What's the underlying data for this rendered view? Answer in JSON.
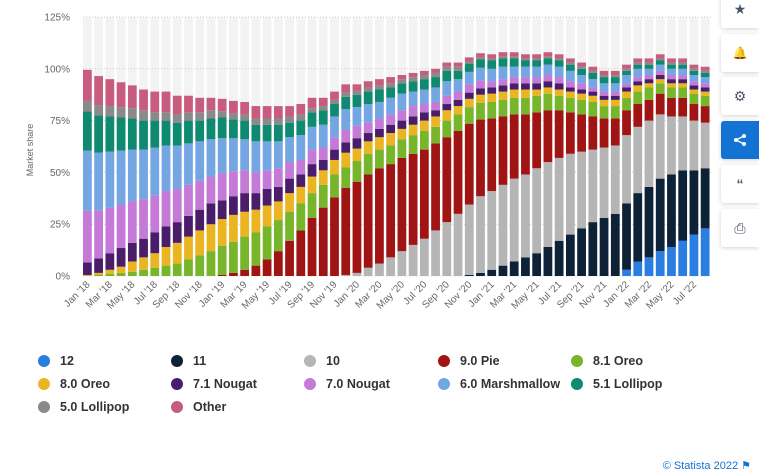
{
  "chart_data": {
    "type": "bar",
    "stacked": true,
    "ylabel": "Market share",
    "ylim": [
      0,
      125
    ],
    "yticks": [
      "0%",
      "25%",
      "50%",
      "75%",
      "100%",
      "125%"
    ],
    "grid": true,
    "legend_position": "bottom",
    "categories": [
      "Jan '18",
      "Feb '18",
      "Mar '18",
      "Apr '18",
      "May '18",
      "Jun '18",
      "Jul '18",
      "Aug '18",
      "Sep '18",
      "Oct '18",
      "Nov '18",
      "Dec '18",
      "Jan '19",
      "Feb '19",
      "Mar '19",
      "Apr '19",
      "May '19",
      "Jun '19",
      "Jul '19",
      "Aug '19",
      "Sep '19",
      "Oct '19",
      "Nov '19",
      "Dec '19",
      "Jan '20",
      "Feb '20",
      "Mar '20",
      "Apr '20",
      "May '20",
      "Jun '20",
      "Jul '20",
      "Aug '20",
      "Sep '20",
      "Oct '20",
      "Nov '20",
      "Dec '20",
      "Jan '21",
      "Feb '21",
      "Mar '21",
      "Apr '21",
      "May '21",
      "Jun '21",
      "Jul '21",
      "Aug '21",
      "Sep '21",
      "Oct '21",
      "Nov '21",
      "Dec '21",
      "Jan '22",
      "Feb '22",
      "Mar '22",
      "Apr '22",
      "May '22",
      "Jun '22",
      "Jul '22",
      "Aug '22"
    ],
    "xtick_labels": [
      "Jan '18",
      "Mar '18",
      "May '18",
      "Jul '18",
      "Sep '18",
      "Nov '18",
      "Jan '19",
      "Mar '19",
      "May '19",
      "Jul '19",
      "Sep '19",
      "Nov '19",
      "Jan '20",
      "Mar '20",
      "May '20",
      "Jul '20",
      "Sep '20",
      "Nov '20",
      "Jan '21",
      "Mar '21",
      "May '21",
      "Jul '21",
      "Sep '21",
      "Nov '21",
      "Jan '22",
      "Mar '22",
      "May '22",
      "Jul '22"
    ],
    "series": [
      {
        "name": "12",
        "color": "#2a7de1",
        "values": [
          0,
          0,
          0,
          0,
          0,
          0,
          0,
          0,
          0,
          0,
          0,
          0,
          0,
          0,
          0,
          0,
          0,
          0,
          0,
          0,
          0,
          0,
          0,
          0,
          0,
          0,
          0,
          0,
          0,
          0,
          0,
          0,
          0,
          0,
          0,
          0,
          0,
          0,
          0,
          0,
          0,
          0,
          0,
          0,
          0,
          0,
          0,
          0,
          3,
          7,
          9,
          12,
          14,
          17,
          20,
          23
        ]
      },
      {
        "name": "11",
        "color": "#0d2137",
        "values": [
          0,
          0,
          0,
          0,
          0,
          0,
          0,
          0,
          0,
          0,
          0,
          0,
          0,
          0,
          0,
          0,
          0,
          0,
          0,
          0,
          0,
          0,
          0,
          0,
          0,
          0,
          0,
          0,
          0,
          0,
          0,
          0,
          0,
          0,
          0.5,
          1.5,
          3,
          5,
          7,
          9,
          11,
          14,
          17,
          20,
          23,
          26,
          28,
          30,
          32,
          33,
          34,
          35,
          35,
          34,
          31,
          29
        ]
      },
      {
        "name": "10",
        "color": "#b5b5b5",
        "values": [
          0,
          0,
          0,
          0,
          0,
          0,
          0,
          0,
          0,
          0,
          0,
          0,
          0,
          0,
          0,
          0,
          0,
          0,
          0,
          0,
          0,
          0,
          0,
          0.5,
          1.5,
          4,
          6,
          9,
          12,
          15,
          18,
          22,
          26,
          30,
          34,
          37,
          38,
          39,
          40,
          40,
          41,
          41,
          40,
          39,
          37,
          35,
          34,
          33,
          33,
          32,
          32,
          31,
          28,
          26,
          24,
          22
        ]
      },
      {
        "name": "9.0 Pie",
        "color": "#a01414",
        "values": [
          0,
          0,
          0,
          0,
          0,
          0,
          0,
          0,
          0,
          0,
          0,
          0,
          0.5,
          1.5,
          3,
          5,
          8,
          12,
          17,
          22,
          28,
          33,
          38,
          42,
          44,
          45,
          46,
          45,
          45,
          44,
          43,
          42,
          41,
          40,
          39,
          37,
          35,
          33,
          31,
          29,
          27,
          25,
          23,
          20,
          18,
          16,
          14,
          13,
          12,
          11,
          10,
          10,
          9,
          9,
          8,
          8
        ]
      },
      {
        "name": "8.1 Oreo",
        "color": "#77b52a",
        "values": [
          0,
          0.5,
          1,
          1.5,
          2,
          3,
          4,
          5,
          6,
          8,
          10,
          12,
          14,
          15,
          16,
          16,
          16,
          15,
          14,
          13,
          12,
          11,
          11,
          10,
          10,
          10,
          9,
          9,
          9,
          9,
          9,
          8,
          8,
          8,
          8,
          8,
          8,
          8,
          8,
          8,
          8,
          8,
          7,
          7,
          7,
          7,
          6,
          6,
          6,
          6,
          6,
          5,
          5,
          5,
          5,
          5
        ]
      },
      {
        "name": "8.0 Oreo",
        "color": "#eab520",
        "values": [
          0.5,
          1,
          2,
          3,
          5,
          6,
          7,
          9,
          10,
          11,
          12,
          13,
          13,
          13,
          12,
          11,
          10,
          9,
          9,
          8,
          8,
          7,
          7,
          7,
          6,
          6,
          6,
          6,
          5,
          5,
          5,
          5,
          5,
          4,
          4,
          4,
          4,
          4,
          4,
          4,
          3,
          3,
          3,
          3,
          3,
          3,
          3,
          3,
          3,
          3,
          2,
          2,
          2,
          2,
          2,
          2
        ]
      },
      {
        "name": "7.1 Nougat",
        "color": "#4a1d6b",
        "values": [
          6,
          7,
          8,
          9,
          9,
          9,
          10,
          10,
          10,
          10,
          10,
          10,
          9,
          9,
          9,
          8,
          8,
          7,
          7,
          6,
          6,
          5,
          5,
          5,
          5,
          4,
          4,
          4,
          4,
          4,
          4,
          3,
          3,
          3,
          3,
          3,
          3,
          3,
          3,
          3,
          3,
          3,
          3,
          2,
          2,
          2,
          2,
          2,
          2,
          2,
          2,
          2,
          2,
          2,
          2,
          2
        ]
      },
      {
        "name": "7.0 Nougat",
        "color": "#c57ad7",
        "values": [
          25,
          23,
          22,
          21,
          20,
          19,
          18,
          17,
          16,
          15,
          14,
          13,
          13,
          12,
          11,
          10,
          9,
          9,
          8,
          7,
          7,
          6,
          6,
          6,
          6,
          5,
          5,
          5,
          5,
          5,
          4,
          4,
          4,
          4,
          4,
          4,
          3,
          3,
          3,
          3,
          3,
          3,
          3,
          3,
          3,
          2,
          2,
          2,
          2,
          2,
          2,
          2,
          2,
          2,
          2,
          2
        ]
      },
      {
        "name": "6.0 Marshmallow",
        "color": "#73a6e2",
        "values": [
          29,
          28,
          27,
          26,
          25,
          24,
          23,
          22,
          21,
          20,
          19,
          18,
          17,
          16,
          15,
          15,
          14,
          13,
          12,
          12,
          11,
          11,
          10,
          10,
          9,
          9,
          8,
          8,
          8,
          7,
          7,
          7,
          7,
          6,
          6,
          6,
          6,
          6,
          5,
          5,
          5,
          5,
          5,
          5,
          4,
          4,
          4,
          4,
          4,
          4,
          3,
          3,
          3,
          3,
          3,
          3
        ]
      },
      {
        "name": "5.1 Lollipop",
        "color": "#0d8a6f",
        "values": [
          19,
          18,
          17,
          16,
          15,
          14,
          13,
          12,
          11,
          11,
          10,
          10,
          10,
          9,
          9,
          8,
          8,
          8,
          7,
          7,
          7,
          7,
          6,
          6,
          6,
          6,
          6,
          5,
          5,
          5,
          5,
          5,
          5,
          4,
          4,
          4,
          4,
          4,
          4,
          3,
          3,
          3,
          3,
          3,
          3,
          3,
          3,
          3,
          2,
          2,
          2,
          2,
          2,
          2,
          2,
          2
        ]
      },
      {
        "name": "5.0 Lollipop",
        "color": "#8a8a8a",
        "values": [
          5,
          5,
          5,
          5,
          5,
          5,
          4,
          4,
          4,
          4,
          4,
          4,
          3,
          3,
          3,
          3,
          3,
          3,
          3,
          3,
          2,
          2,
          2,
          2,
          2,
          2,
          2,
          2,
          2,
          2,
          2,
          2,
          2,
          2,
          1,
          1,
          1,
          1,
          1,
          1,
          1,
          1,
          1,
          1,
          1,
          1,
          1,
          1,
          1,
          1,
          1,
          1,
          1,
          1,
          1,
          1
        ]
      },
      {
        "name": "Other",
        "color": "#c75c7e",
        "values": [
          15,
          14,
          13,
          12,
          11,
          10,
          10,
          10,
          9,
          8,
          7,
          6,
          6,
          6,
          6,
          6,
          6,
          6,
          5,
          5,
          5,
          4,
          4,
          4,
          3,
          3,
          3,
          3,
          2,
          2,
          2,
          2,
          2,
          2,
          2,
          2,
          2,
          2,
          2,
          2,
          2,
          2,
          2,
          2,
          2,
          2,
          2,
          2,
          2,
          2,
          2,
          2,
          2,
          2,
          2,
          2
        ]
      }
    ]
  },
  "sidebar": {
    "icons": [
      "star-icon",
      "bell-icon",
      "gear-icon",
      "share-icon",
      "quote-icon",
      "print-icon"
    ],
    "glyphs": [
      "★",
      "🔔",
      "⚙",
      "⟨",
      "❝",
      "⎙"
    ]
  },
  "credit": "© Statista 2022"
}
